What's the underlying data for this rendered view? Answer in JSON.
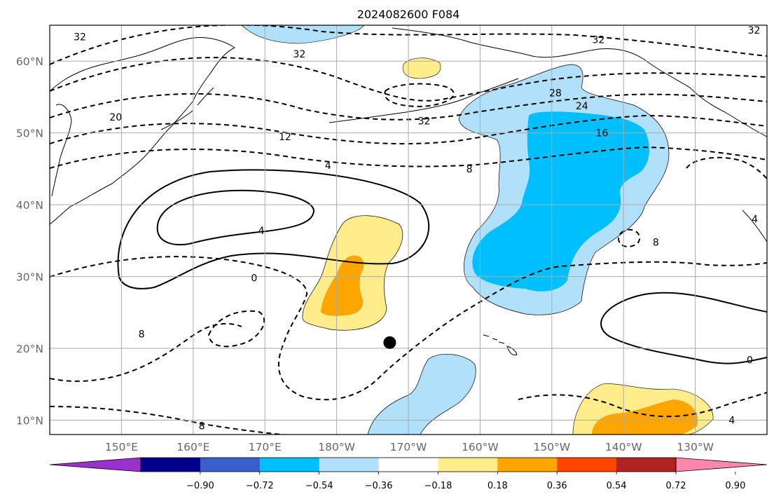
{
  "title": "2024082600 F084",
  "map": {
    "lon_labels": [
      "150°E",
      "160°E",
      "170°E",
      "180°W",
      "170°W",
      "160°W",
      "150°W",
      "140°W",
      "130°W"
    ],
    "lat_labels": [
      "60°N",
      "50°N",
      "40°N",
      "30°N",
      "20°N",
      "10°N"
    ],
    "lon_values": [
      150,
      160,
      170,
      180,
      190,
      200,
      210,
      220,
      230
    ],
    "lat_values": [
      60,
      50,
      40,
      30,
      20,
      10
    ],
    "extent": {
      "lon_min": 140,
      "lon_max": 240,
      "lat_min": 8,
      "lat_max": 65
    },
    "grid": true,
    "marker": {
      "lon": 187.4,
      "lat": 20.8,
      "color": "#000000"
    }
  },
  "contour_labels": [
    {
      "text": "32",
      "lon": 144.2,
      "lat": 63.4
    },
    {
      "text": "32",
      "lon": 174.8,
      "lat": 61.0
    },
    {
      "text": "20",
      "lon": 149.2,
      "lat": 52.2
    },
    {
      "text": "12",
      "lon": 172.8,
      "lat": 49.5
    },
    {
      "text": "4",
      "lon": 178.8,
      "lat": 45.5
    },
    {
      "text": "4",
      "lon": 169.5,
      "lat": 36.4
    },
    {
      "text": "0",
      "lon": 168.5,
      "lat": 29.8
    },
    {
      "text": "8",
      "lon": 152.8,
      "lat": 22.0
    },
    {
      "text": "8",
      "lon": 161.2,
      "lat": 9.2
    },
    {
      "text": "32",
      "lon": 192.2,
      "lat": 51.7
    },
    {
      "text": "8",
      "lon": 198.5,
      "lat": 45.0
    },
    {
      "text": "28",
      "lon": 210.5,
      "lat": 55.6
    },
    {
      "text": "24",
      "lon": 214.2,
      "lat": 53.8
    },
    {
      "text": "16",
      "lon": 217.0,
      "lat": 50.0
    },
    {
      "text": "32",
      "lon": 216.5,
      "lat": 63.0
    },
    {
      "text": "32",
      "lon": 238.2,
      "lat": 64.3
    },
    {
      "text": "8",
      "lon": 224.5,
      "lat": 34.8
    },
    {
      "text": "4",
      "lon": 238.3,
      "lat": 38.0
    },
    {
      "text": "0",
      "lon": 237.6,
      "lat": 18.4
    },
    {
      "text": "4",
      "lon": 235.1,
      "lat": 10.0
    }
  ],
  "colorbar": {
    "labels": [
      "−0.90",
      "−0.72",
      "−0.54",
      "−0.36",
      "−0.18",
      "0.18",
      "0.36",
      "0.54",
      "0.72",
      "0.90"
    ],
    "levels": [
      -0.9,
      -0.72,
      -0.54,
      -0.36,
      -0.18,
      0.18,
      0.36,
      0.54,
      0.72,
      0.9
    ],
    "colors": [
      "#9932cc",
      "#00008b",
      "#3a5fcd",
      "#00bfff",
      "#b0e0fa",
      "#ffffff",
      "#ffec8b",
      "#ffa500",
      "#ff4500",
      "#b22222",
      "#ff88aa"
    ]
  }
}
